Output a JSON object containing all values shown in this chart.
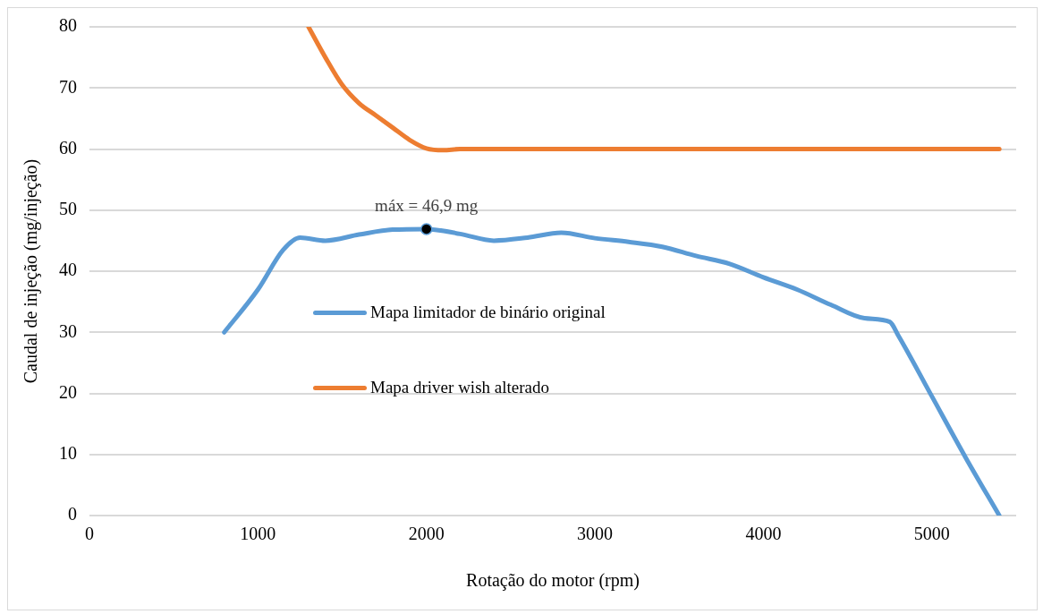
{
  "chart_data": {
    "type": "line",
    "xlabel": "Rotação do motor (rpm)",
    "ylabel": "Caudal de injeção (mg/injeção)",
    "xlim": [
      0,
      5500
    ],
    "xticks": [
      0,
      1000,
      2000,
      3000,
      4000,
      5000
    ],
    "ylim": [
      0,
      80
    ],
    "yticks": [
      0,
      10,
      20,
      30,
      40,
      50,
      60,
      70,
      80
    ],
    "grid": "y",
    "legend": "left",
    "marker": "none",
    "line_style": "solid",
    "series": [
      {
        "name": "Mapa limitador de binário original",
        "color": "#5b9bd5",
        "x": [
          800,
          1000,
          1150,
          1250,
          1400,
          1600,
          1800,
          2000,
          2200,
          2400,
          2600,
          2800,
          3000,
          3200,
          3400,
          3600,
          3800,
          4000,
          4200,
          4400,
          4600,
          4750,
          4800,
          5000,
          5200,
          5400
        ],
        "values": [
          30,
          37,
          43.5,
          45.5,
          45,
          46,
          46.8,
          46.9,
          46.1,
          45,
          45.5,
          46.3,
          45.4,
          44.8,
          44,
          42.5,
          41.2,
          39,
          37,
          34.5,
          32.3,
          31.7,
          29.5,
          19.5,
          9.5,
          0
        ]
      },
      {
        "name": "Mapa driver wish alterado",
        "color": "#ed7d31",
        "x": [
          1300,
          1400,
          1500,
          1600,
          1700,
          1800,
          1900,
          2000,
          2100,
          2200,
          3000,
          4000,
          5000,
          5400
        ],
        "values": [
          80,
          75,
          70.5,
          67.5,
          65.5,
          63.5,
          61.5,
          60.1,
          59.8,
          60,
          60,
          60,
          60,
          60
        ]
      }
    ],
    "annotations": [
      {
        "text": "máx = 46,9 mg",
        "x": 2000,
        "y": 46.9
      }
    ]
  }
}
